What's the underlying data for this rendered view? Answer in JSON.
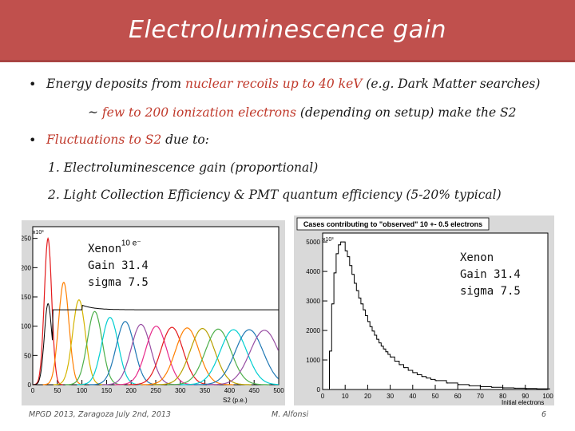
{
  "slide": {
    "title": "Electroluminescence gain",
    "bullet1": {
      "pre": "Energy deposits from ",
      "red1": "nuclear recoils up to 40 keV",
      "post1": " (e.g. Dark Matter searches)",
      "line2_pre": "~ ",
      "red2": "few to 200 ionization electrons",
      "line2_post": " (depending on setup) make the S2"
    },
    "bullet2": {
      "red": "Fluctuations to S2",
      "post": " due to:"
    },
    "item1": "1. Electroluminescence gain (proportional)",
    "item2": "2. Light Collection Efficiency & PMT quantum efficiency (5-20% typical)"
  },
  "plot_left_labels": {
    "xenon": "Xenon",
    "gain": "Gain 31.4",
    "sigma": "sigma 7.5"
  },
  "plot_right_labels": {
    "xenon": "Xenon",
    "gain": "Gain 31.4",
    "sigma": "sigma 7.5"
  },
  "footer": {
    "left": "MPGD 2013, Zaragoza July 2nd, 2013",
    "center": "M. Alfonsi",
    "page": "6"
  },
  "chart_data": [
    {
      "type": "line",
      "xlabel": "S2 (p.e.)",
      "ylabel": "",
      "y_exponent": "x10³",
      "annotation": "10 e⁻",
      "x_ticks": [
        "0",
        "50",
        "100",
        "150",
        "200",
        "250",
        "300",
        "350",
        "400",
        "450",
        "500"
      ],
      "y_ticks": [
        "0",
        "50",
        "100",
        "150",
        "200",
        "250"
      ],
      "xlim": [
        0,
        500
      ],
      "ylim": [
        0,
        270
      ],
      "total_curve_baseline": [
        [
          40,
          120
        ],
        [
          60,
          170
        ],
        [
          80,
          125
        ],
        [
          100,
          140
        ],
        [
          120,
          135
        ],
        [
          150,
          130
        ],
        [
          200,
          128
        ],
        [
          300,
          128
        ],
        [
          500,
          128
        ]
      ],
      "series": [
        {
          "mean": 31,
          "sigma": 7.5,
          "peak": 250,
          "color": "#e41a1c"
        },
        {
          "mean": 63,
          "sigma": 10.6,
          "peak": 175,
          "color": "#ff7f00"
        },
        {
          "mean": 94,
          "sigma": 13.0,
          "peak": 145,
          "color": "#d4b400"
        },
        {
          "mean": 126,
          "sigma": 15.0,
          "peak": 125,
          "color": "#4daf4a"
        },
        {
          "mean": 157,
          "sigma": 16.8,
          "peak": 115,
          "color": "#00ced1"
        },
        {
          "mean": 188,
          "sigma": 18.4,
          "peak": 108,
          "color": "#1f78b4"
        },
        {
          "mean": 220,
          "sigma": 19.8,
          "peak": 103,
          "color": "#984ea3"
        },
        {
          "mean": 251,
          "sigma": 21.2,
          "peak": 100,
          "color": "#e7298a"
        },
        {
          "mean": 283,
          "sigma": 22.5,
          "peak": 98,
          "color": "#e41a1c"
        },
        {
          "mean": 314,
          "sigma": 23.7,
          "peak": 97,
          "color": "#ff7f00"
        },
        {
          "mean": 345,
          "sigma": 24.9,
          "peak": 96,
          "color": "#b8a000"
        },
        {
          "mean": 377,
          "sigma": 26.0,
          "peak": 95,
          "color": "#4daf4a"
        },
        {
          "mean": 408,
          "sigma": 27.1,
          "peak": 94,
          "color": "#00ced1"
        },
        {
          "mean": 440,
          "sigma": 28.2,
          "peak": 94,
          "color": "#1f78b4"
        },
        {
          "mean": 471,
          "sigma": 29.2,
          "peak": 93,
          "color": "#984ea3"
        }
      ]
    },
    {
      "type": "bar",
      "title": "Cases contributing to \"observed\" 10 +- 0.5 electrons",
      "xlabel": "Initial electrons",
      "y_exponent": "x10³",
      "x_ticks": [
        "0",
        "10",
        "20",
        "30",
        "40",
        "50",
        "60",
        "70",
        "80",
        "90",
        "100"
      ],
      "y_ticks": [
        "0",
        "1000",
        "2000",
        "3000",
        "4000",
        "5000"
      ],
      "xlim": [
        0,
        100
      ],
      "ylim": [
        0,
        5300
      ],
      "categories": [
        2,
        3,
        4,
        5,
        6,
        7,
        8,
        9,
        10,
        11,
        12,
        13,
        14,
        15,
        16,
        17,
        18,
        19,
        20,
        21,
        22,
        23,
        24,
        25,
        26,
        27,
        28,
        29,
        30,
        32,
        34,
        36,
        38,
        40,
        42,
        44,
        46,
        48,
        50,
        55,
        60,
        65,
        70,
        75,
        80,
        85,
        90,
        95,
        100
      ],
      "values": [
        0,
        1300,
        2900,
        3950,
        4600,
        4900,
        5000,
        5000,
        4700,
        4500,
        4200,
        3900,
        3600,
        3350,
        3100,
        2900,
        2700,
        2500,
        2300,
        2130,
        1980,
        1840,
        1700,
        1580,
        1470,
        1370,
        1280,
        1190,
        1100,
        960,
        840,
        740,
        650,
        570,
        500,
        440,
        390,
        340,
        300,
        220,
        165,
        125,
        95,
        72,
        55,
        42,
        32,
        25,
        18
      ]
    }
  ]
}
